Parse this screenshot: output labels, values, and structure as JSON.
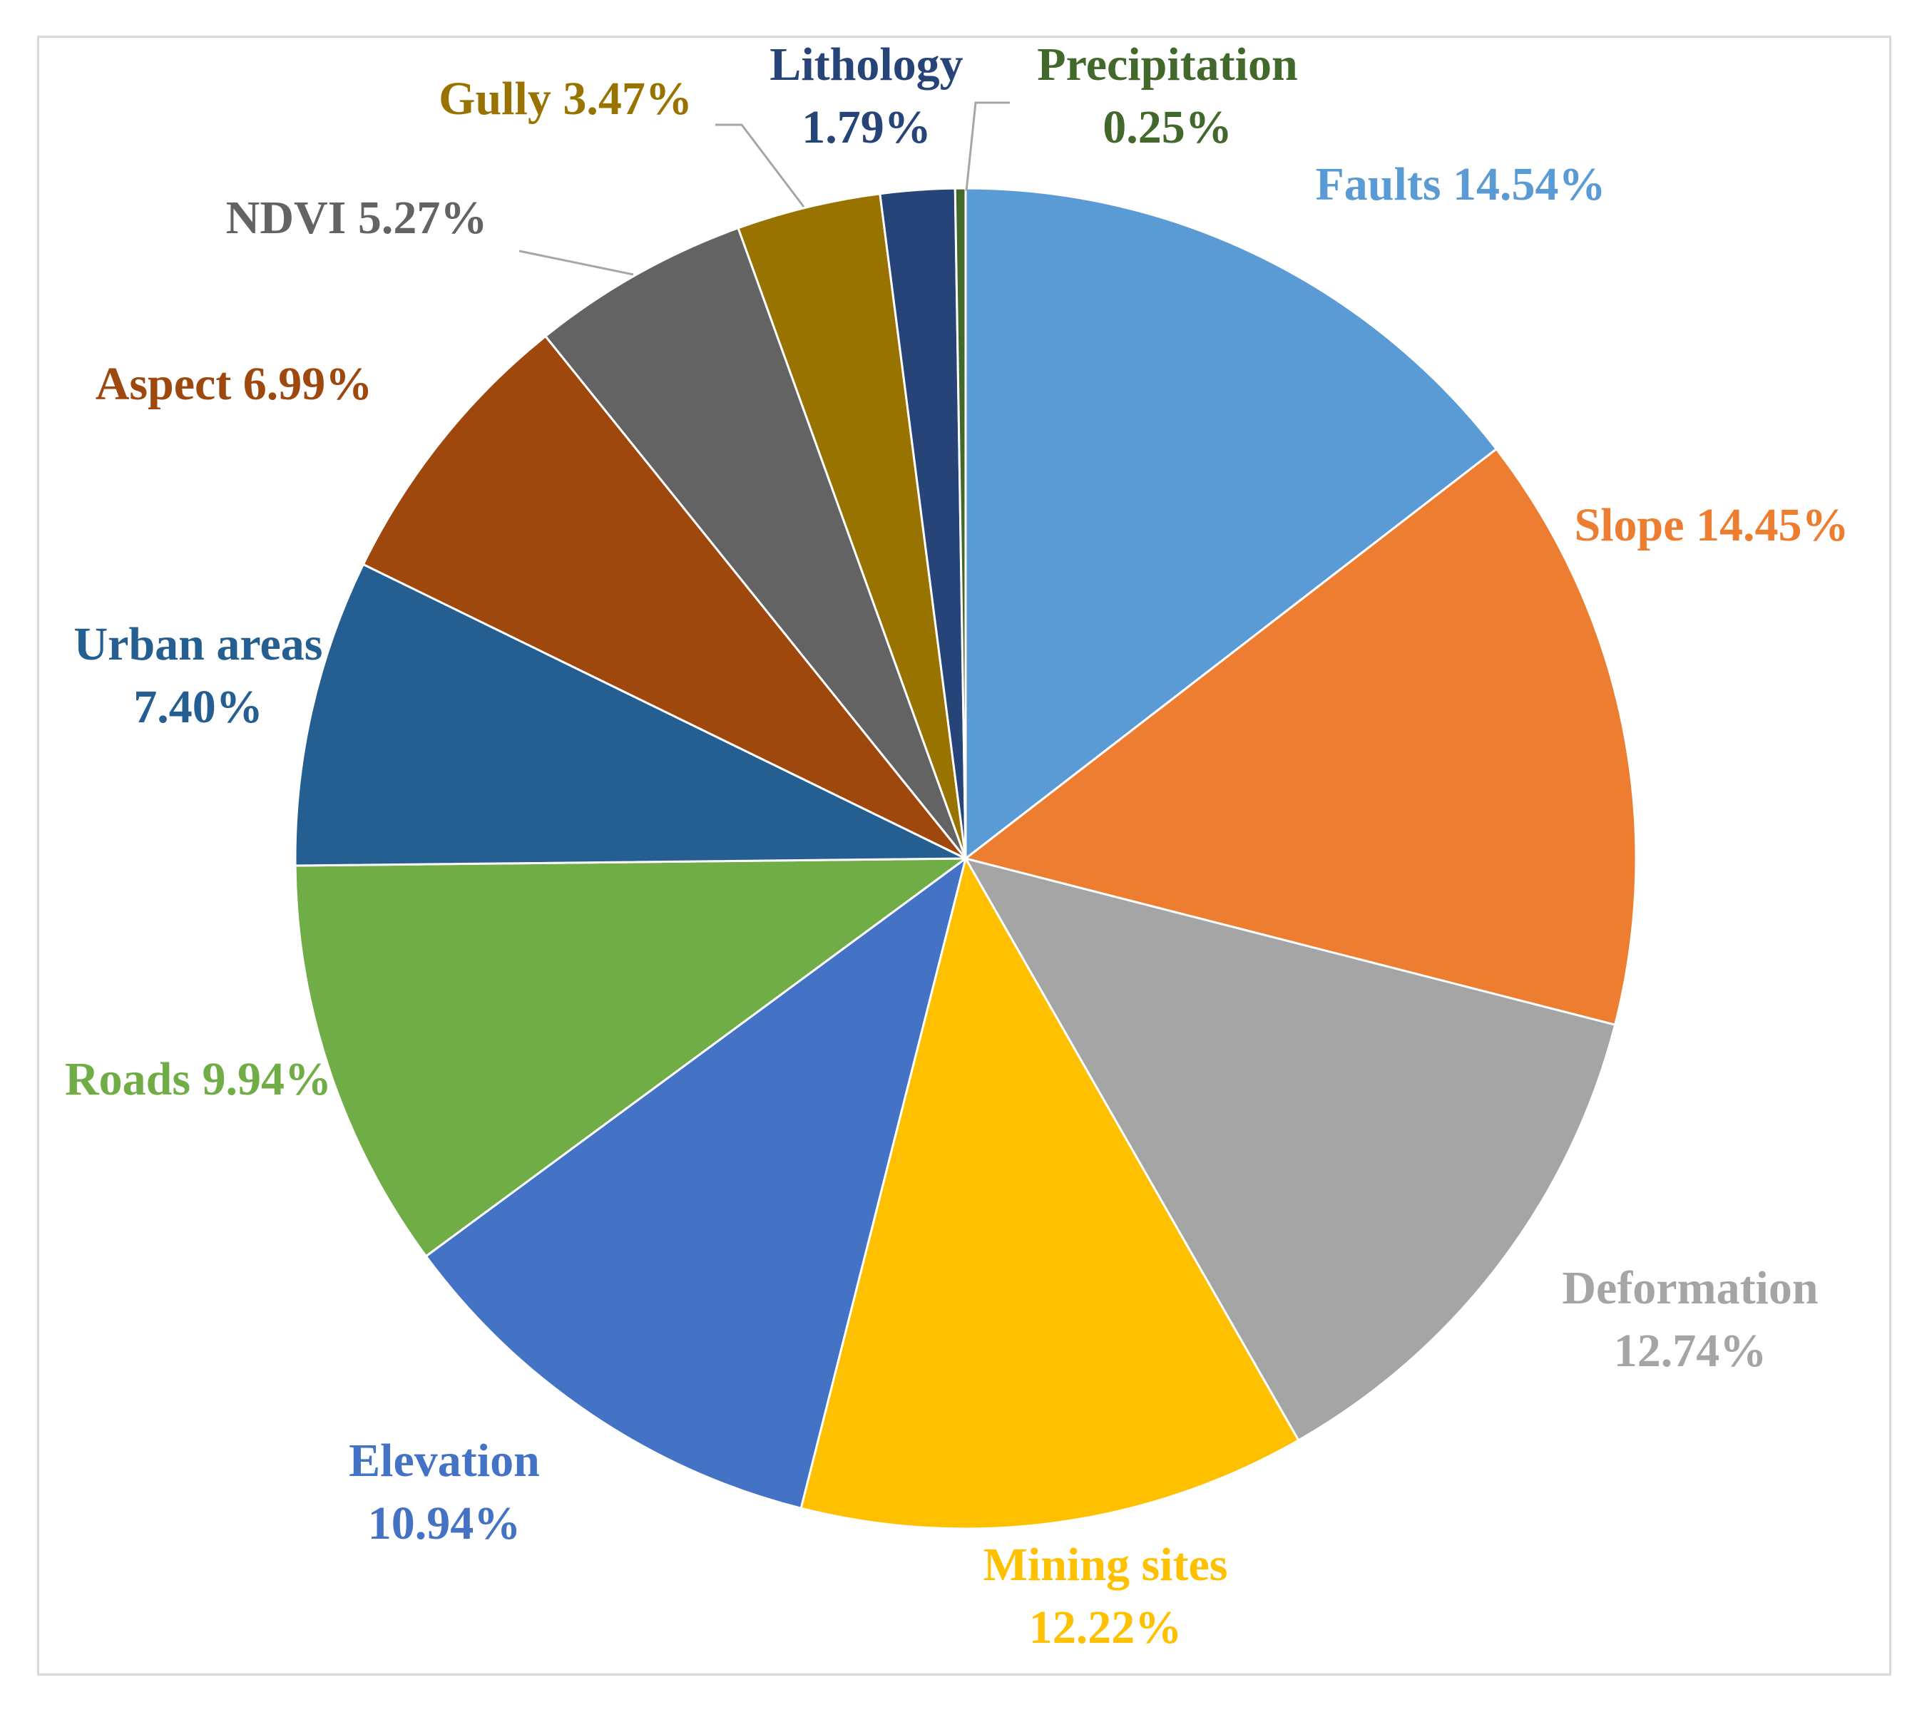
{
  "chart_data": {
    "type": "pie",
    "title": "",
    "slices": [
      {
        "name": "Faults",
        "value": 14.54,
        "label": "14.54%",
        "color": "#5B9BD5"
      },
      {
        "name": "Slope",
        "value": 14.45,
        "label": "14.45%",
        "color": "#ED7D31"
      },
      {
        "name": "Deformation",
        "value": 12.74,
        "label": "12.74%",
        "color": "#A5A5A5"
      },
      {
        "name": "Mining sites",
        "value": 12.22,
        "label": "12.22%",
        "color": "#FFC000"
      },
      {
        "name": "Elevation",
        "value": 10.94,
        "label": "10.94%",
        "color": "#4472C4"
      },
      {
        "name": "Roads",
        "value": 9.94,
        "label": "9.94%",
        "color": "#70AD47"
      },
      {
        "name": "Urban areas",
        "value": 7.4,
        "label": "7.40%",
        "color": "#255E91"
      },
      {
        "name": "Aspect",
        "value": 6.99,
        "label": "6.99%",
        "color": "#9E480E"
      },
      {
        "name": "NDVI",
        "value": 5.27,
        "label": "5.27%",
        "color": "#636363"
      },
      {
        "name": "Gully",
        "value": 3.47,
        "label": "3.47%",
        "color": "#997300"
      },
      {
        "name": "Lithology",
        "value": 1.79,
        "label": "1.79%",
        "color": "#264478"
      },
      {
        "name": "Precipitation",
        "value": 0.25,
        "label": "0.25%",
        "color": "#43682B"
      }
    ],
    "label_text_colors": {
      "Faults": "#5B9BD5",
      "Slope": "#ED7D31",
      "Deformation": "#A5A5A5",
      "Mining sites": "#FFC000",
      "Elevation": "#4472C4",
      "Roads": "#70AD47",
      "Urban areas": "#255E91",
      "Aspect": "#9E480E",
      "NDVI": "#636363",
      "Gully": "#997300",
      "Lithology": "#264478",
      "Precipitation": "#43682B"
    },
    "leader_line_color": "#A6A6A6",
    "start_angle": "12 o'clock",
    "direction": "clockwise"
  }
}
